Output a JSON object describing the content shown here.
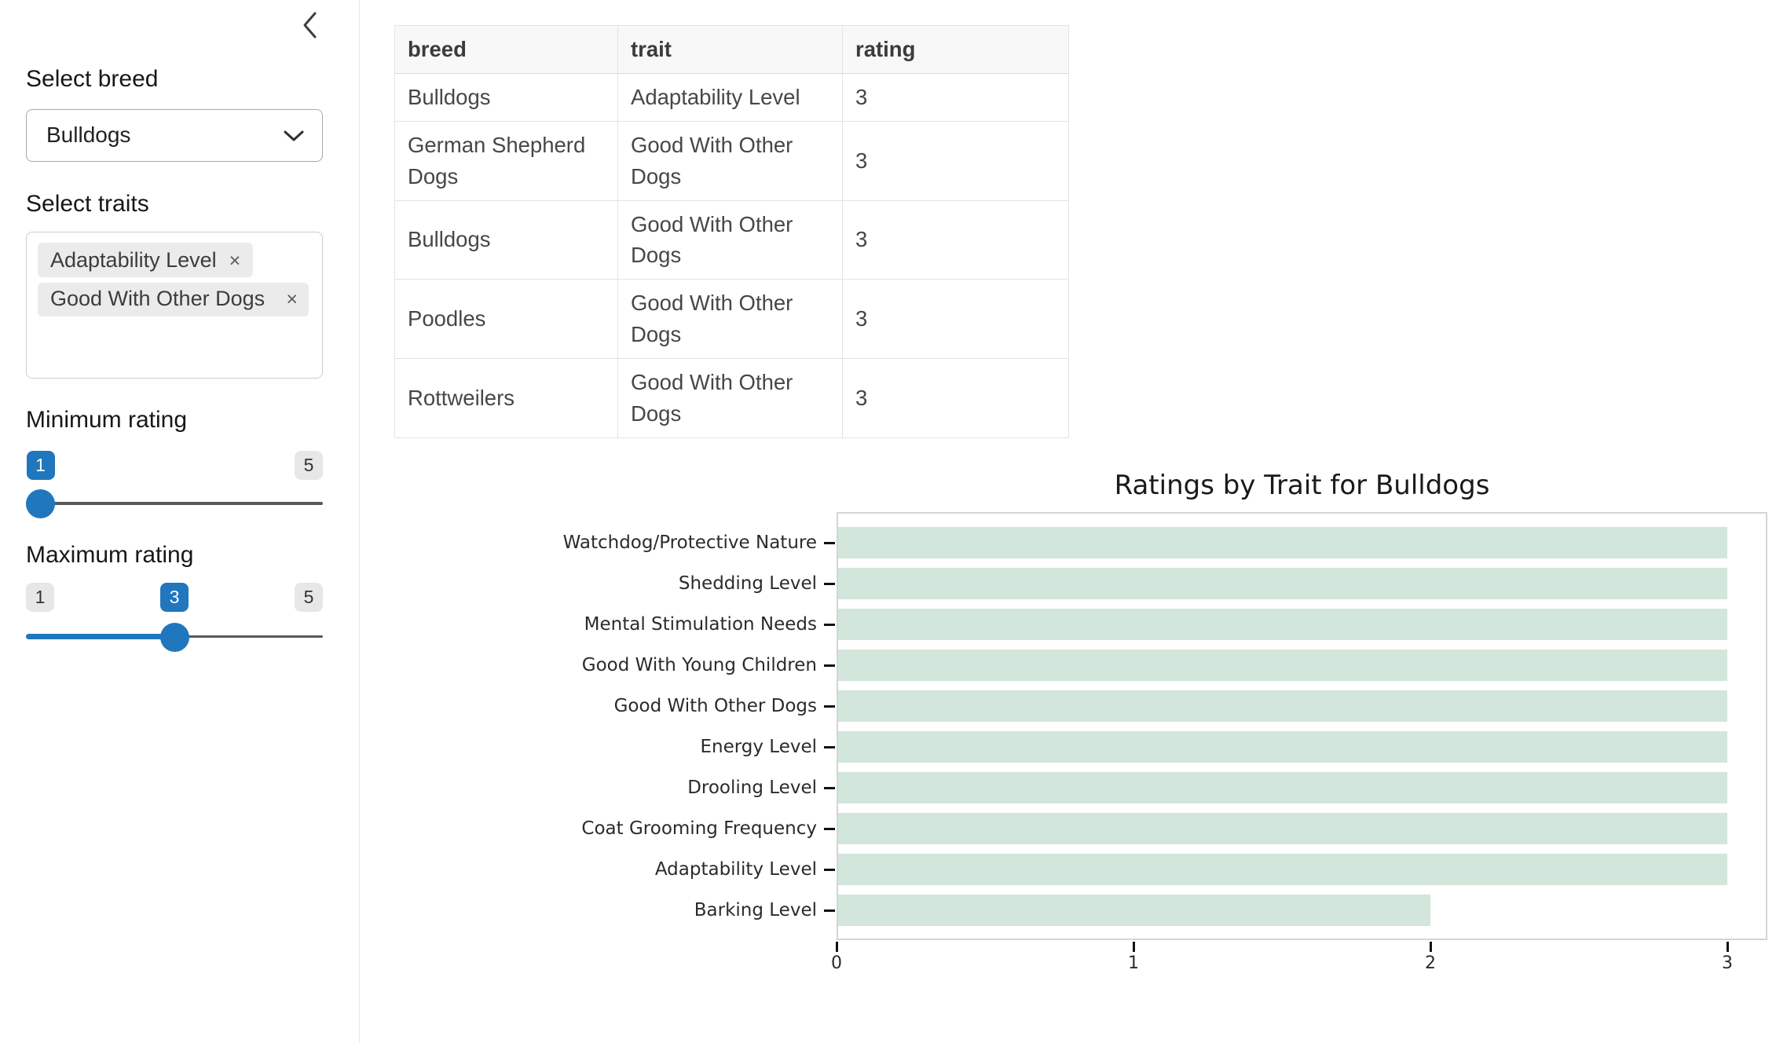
{
  "sidebar": {
    "breed_label": "Select breed",
    "breed_value": "Bulldogs",
    "traits_label": "Select traits",
    "selected_traits": [
      "Adaptability Level",
      "Good With Other Dogs"
    ],
    "remove_glyph": "×",
    "min_rating": {
      "label": "Minimum rating",
      "min": 1,
      "max": 5,
      "value": 1
    },
    "max_rating": {
      "label": "Maximum rating",
      "min": 1,
      "max": 5,
      "value": 3
    }
  },
  "table": {
    "columns": [
      "breed",
      "trait",
      "rating"
    ],
    "rows": [
      [
        "Bulldogs",
        "Adaptability Level",
        "3"
      ],
      [
        "German Shepherd Dogs",
        "Good With Other Dogs",
        "3"
      ],
      [
        "Bulldogs",
        "Good With Other Dogs",
        "3"
      ],
      [
        "Poodles",
        "Good With Other Dogs",
        "3"
      ],
      [
        "Rottweilers",
        "Good With Other Dogs",
        "3"
      ]
    ]
  },
  "chart_data": {
    "type": "bar",
    "orientation": "horizontal",
    "title": "Ratings by Trait for Bulldogs",
    "categories": [
      "Watchdog/Protective Nature",
      "Shedding Level",
      "Mental Stimulation Needs",
      "Good With Young Children",
      "Good With Other Dogs",
      "Energy Level",
      "Drooling Level",
      "Coat Grooming Frequency",
      "Adaptability Level",
      "Barking Level"
    ],
    "values": [
      3,
      3,
      3,
      3,
      3,
      3,
      3,
      3,
      3,
      2
    ],
    "xticks": [
      0,
      1,
      2,
      3
    ],
    "xlim": [
      0,
      3.15
    ],
    "xlabel": "",
    "ylabel": "",
    "grid": false,
    "legend": "none",
    "bar_color": "#d2e6dc"
  },
  "colors": {
    "accent_blue": "#2077bd",
    "bar_fill": "#d2e6dc",
    "plot_border": "#d5d5d5"
  }
}
